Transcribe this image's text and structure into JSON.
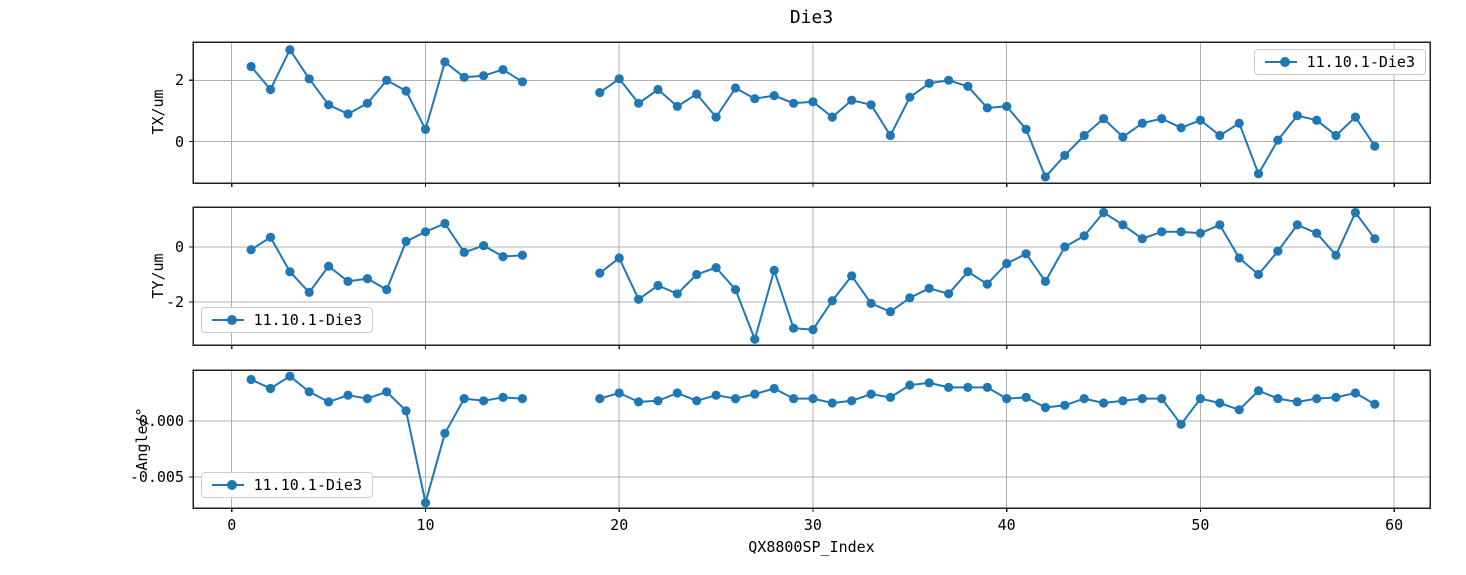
{
  "figure": {
    "title": "Die3",
    "xlabel": "QX8800SP_Index",
    "legend_label": "11.10.1-Die3",
    "x_tick_labels": [
      "0",
      "10",
      "20",
      "30",
      "40",
      "50",
      "60"
    ],
    "colors": {
      "line": "#1f77b4",
      "marker": "#1f77b4",
      "grid": "#b0b0b0",
      "spine": "#222222",
      "legend_border": "#cccccc",
      "text": "#000000"
    }
  },
  "chart_data": [
    {
      "type": "line",
      "title": "Die3",
      "ylabel": "TX/um",
      "legend": "11.10.1-Die3",
      "legend_position": "upper right",
      "grid": true,
      "xlim": [
        -2,
        61.85
      ],
      "ylim": [
        -1.35,
        3.25
      ],
      "xticks": [
        0,
        10,
        20,
        30,
        40,
        50,
        60
      ],
      "yticks": [
        0,
        2
      ],
      "ytick_labels": [
        "0",
        "2"
      ],
      "x": [
        1,
        2,
        3,
        4,
        5,
        6,
        7,
        8,
        9,
        10,
        11,
        12,
        13,
        14,
        15,
        19,
        20,
        21,
        22,
        23,
        24,
        25,
        26,
        27,
        28,
        29,
        30,
        31,
        32,
        33,
        34,
        35,
        36,
        37,
        38,
        39,
        40,
        41,
        42,
        43,
        44,
        45,
        46,
        47,
        48,
        49,
        50,
        51,
        52,
        53,
        54,
        55,
        56,
        57,
        58,
        59
      ],
      "y": [
        2.45,
        1.7,
        3.0,
        2.05,
        1.2,
        0.9,
        1.25,
        2.0,
        1.65,
        0.4,
        2.6,
        2.1,
        2.15,
        2.35,
        1.95,
        1.6,
        2.05,
        1.25,
        1.7,
        1.15,
        1.55,
        0.8,
        1.75,
        1.4,
        1.5,
        1.25,
        1.3,
        0.8,
        1.35,
        1.2,
        0.2,
        1.45,
        1.9,
        2.0,
        1.8,
        1.1,
        1.15,
        0.4,
        -1.15,
        -0.45,
        0.2,
        0.75,
        0.15,
        0.6,
        0.75,
        0.45,
        0.7,
        0.2,
        0.6,
        -1.05,
        0.05,
        0.85,
        0.7,
        0.2,
        0.8,
        -0.15
      ]
    },
    {
      "type": "line",
      "ylabel": "TY/um",
      "legend": "11.10.1-Die3",
      "legend_position": "lower left",
      "grid": true,
      "xlim": [
        -2,
        61.85
      ],
      "ylim": [
        -3.56,
        1.45
      ],
      "xticks": [
        0,
        10,
        20,
        30,
        40,
        50,
        60
      ],
      "yticks": [
        -2,
        0
      ],
      "ytick_labels": [
        "-2",
        "0"
      ],
      "x": [
        1,
        2,
        3,
        4,
        5,
        6,
        7,
        8,
        9,
        10,
        11,
        12,
        13,
        14,
        15,
        19,
        20,
        21,
        22,
        23,
        24,
        25,
        26,
        27,
        28,
        29,
        30,
        31,
        32,
        33,
        34,
        35,
        36,
        37,
        38,
        39,
        40,
        41,
        42,
        43,
        44,
        45,
        46,
        47,
        48,
        49,
        50,
        51,
        52,
        53,
        54,
        55,
        56,
        57,
        58,
        59
      ],
      "y": [
        -0.1,
        0.35,
        -0.9,
        -1.65,
        -0.7,
        -1.25,
        -1.15,
        -1.55,
        0.2,
        0.55,
        0.85,
        -0.2,
        0.05,
        -0.35,
        -0.3,
        -0.95,
        -0.4,
        -1.9,
        -1.4,
        -1.7,
        -1.0,
        -0.75,
        -1.55,
        -3.35,
        -0.85,
        -2.95,
        -3.0,
        -1.95,
        -1.05,
        -2.05,
        -2.35,
        -1.85,
        -1.5,
        -1.7,
        -0.9,
        -1.35,
        -0.6,
        -0.25,
        -1.25,
        0.0,
        0.4,
        1.25,
        0.8,
        0.3,
        0.55,
        0.55,
        0.5,
        0.8,
        -0.4,
        -1.0,
        -0.15,
        0.8,
        0.5,
        -0.3,
        1.25,
        0.3
      ]
    },
    {
      "type": "line",
      "ylabel": "Angle/°",
      "legend": "11.10.1-Die3",
      "legend_position": "lower left",
      "grid": true,
      "xlim": [
        -2,
        61.85
      ],
      "ylim": [
        -0.00777,
        0.00455
      ],
      "xticks": [
        0,
        10,
        20,
        30,
        40,
        50,
        60
      ],
      "yticks": [
        -0.005,
        0
      ],
      "ytick_labels": [
        "-0.005",
        "0.000"
      ],
      "x": [
        1,
        2,
        3,
        4,
        5,
        6,
        7,
        8,
        9,
        10,
        11,
        12,
        13,
        14,
        15,
        19,
        20,
        21,
        22,
        23,
        24,
        25,
        26,
        27,
        28,
        29,
        30,
        31,
        32,
        33,
        34,
        35,
        36,
        37,
        38,
        39,
        40,
        41,
        42,
        43,
        44,
        45,
        46,
        47,
        48,
        49,
        50,
        51,
        52,
        53,
        54,
        55,
        56,
        57,
        58,
        59
      ],
      "y": [
        0.0037,
        0.0029,
        0.004,
        0.0026,
        0.0017,
        0.0023,
        0.002,
        0.0026,
        0.0009,
        -0.0073,
        -0.0011,
        0.002,
        0.0018,
        0.0021,
        0.002,
        0.002,
        0.0025,
        0.0017,
        0.0018,
        0.0025,
        0.0018,
        0.0023,
        0.002,
        0.0024,
        0.0029,
        0.002,
        0.002,
        0.0016,
        0.0018,
        0.0024,
        0.0021,
        0.0032,
        0.0034,
        0.003,
        0.003,
        0.003,
        0.002,
        0.0021,
        0.0012,
        0.0014,
        0.002,
        0.0016,
        0.0018,
        0.002,
        0.002,
        -0.0003,
        0.002,
        0.0016,
        0.001,
        0.0027,
        0.002,
        0.0017,
        0.002,
        0.0021,
        0.0025,
        0.0015
      ]
    }
  ]
}
